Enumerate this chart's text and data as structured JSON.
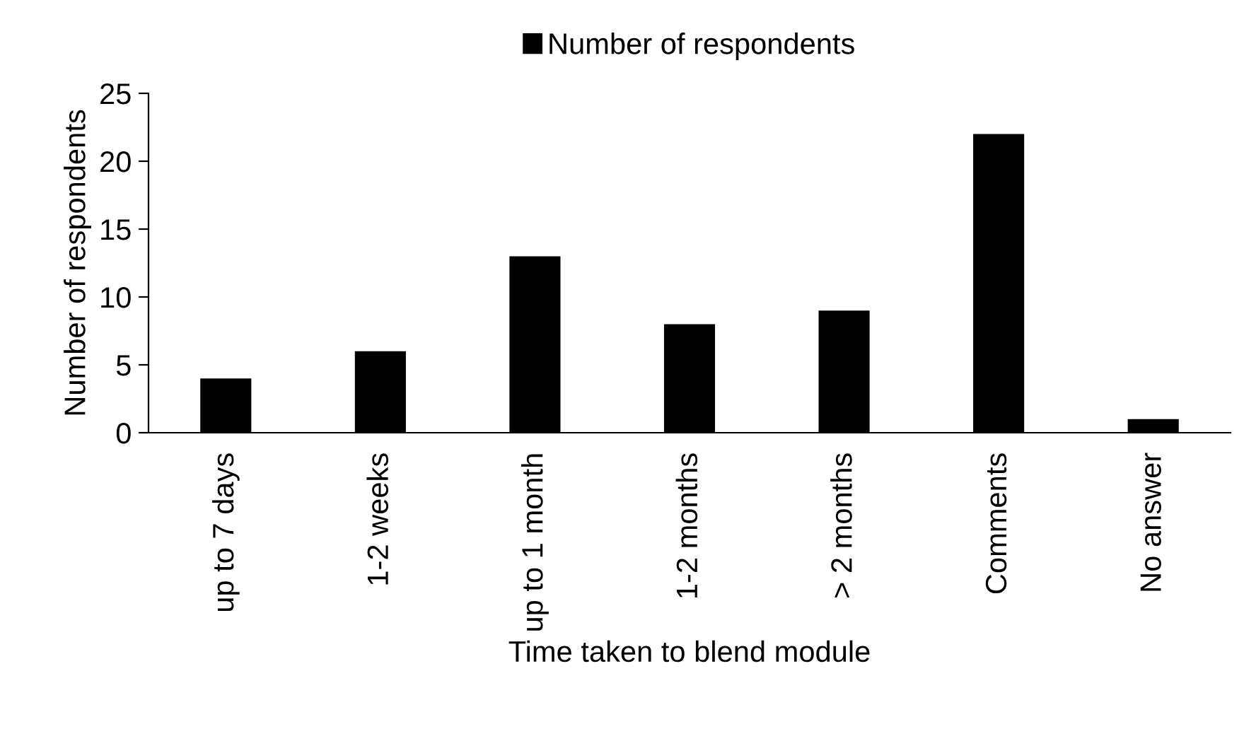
{
  "chart_data": {
    "type": "bar",
    "xlabel": "Time taken to blend module",
    "ylabel": "Number of respondents",
    "categories": [
      "up to 7 days",
      "1-2 weeks",
      "up to 1 month",
      "1-2 months",
      "> 2 months",
      "Comments",
      "No answer"
    ],
    "series": [
      {
        "name": "Number of respondents",
        "color": "#000000",
        "values": [
          4,
          6,
          13,
          8,
          9,
          22,
          1
        ]
      }
    ],
    "ylim": [
      0,
      25
    ],
    "yticks": [
      0,
      5,
      10,
      15,
      20,
      25
    ],
    "grid": false,
    "legend": "top"
  }
}
